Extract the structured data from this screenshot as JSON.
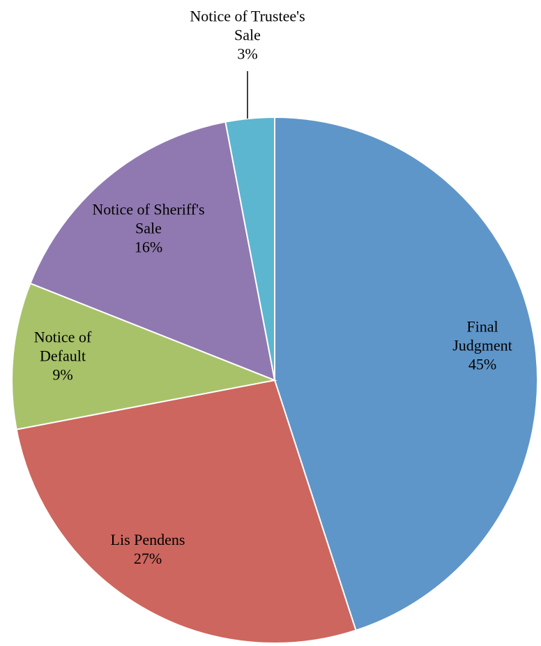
{
  "chart_data": {
    "type": "pie",
    "categories": [
      "Final Judgment",
      "Lis Pendens",
      "Notice of Default",
      "Notice of Sheriff's Sale",
      "Notice of Trustee's Sale"
    ],
    "values": [
      45,
      27,
      9,
      16,
      3
    ],
    "value_labels": [
      "45%",
      "27%",
      "9%",
      "16%",
      "3%"
    ],
    "colors": [
      "#5f96c9",
      "#cd665e",
      "#a8c26a",
      "#9079b0",
      "#5cb6cf"
    ]
  }
}
